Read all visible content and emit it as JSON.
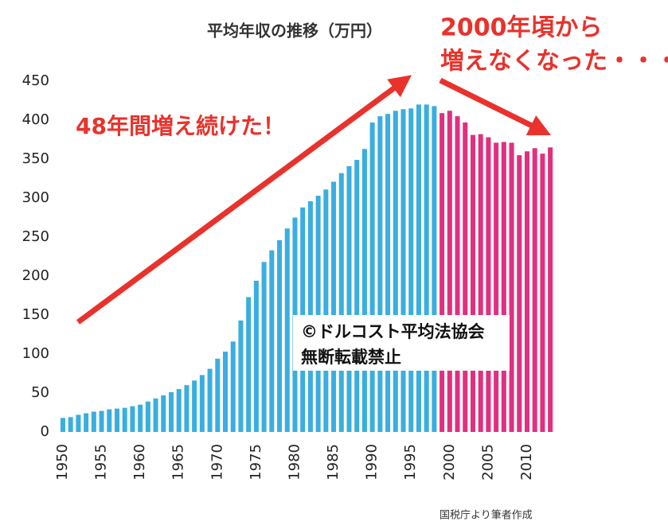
{
  "chart_data": {
    "type": "bar",
    "title": "平均年収の推移（万円）",
    "annotations": [
      "48年間増え続けた！",
      "2000年頃から",
      "増えなくなった・・・",
      "©ドルコスト平均法協会",
      "無断転載禁止"
    ],
    "source": "国税庁より筆者作成",
    "series": [
      {
        "color": "#3aaee0",
        "x": [
          1950,
          1951,
          1952,
          1953,
          1954,
          1955,
          1956,
          1957,
          1958,
          1959,
          1960,
          1961,
          1962,
          1963,
          1964,
          1965,
          1966,
          1967,
          1968,
          1969,
          1970,
          1971,
          1972,
          1973,
          1974,
          1975,
          1976,
          1977,
          1978,
          1979,
          1980,
          1981,
          1982,
          1983,
          1984,
          1985,
          1986,
          1987,
          1988,
          1989,
          1990,
          1991,
          1992,
          1993,
          1994,
          1995,
          1996,
          1997,
          1998
        ],
        "values": [
          18,
          19,
          22,
          24,
          26,
          27,
          29,
          30,
          31,
          33,
          35,
          39,
          43,
          47,
          51,
          55,
          60,
          66,
          73,
          81,
          94,
          103,
          116,
          143,
          173,
          194,
          218,
          233,
          246,
          261,
          275,
          288,
          296,
          303,
          311,
          321,
          332,
          341,
          349,
          363,
          397,
          405,
          408,
          412,
          414,
          415,
          420,
          420,
          418
        ]
      },
      {
        "color": "#e0307f",
        "x": [
          1999,
          2000,
          2001,
          2002,
          2003,
          2004,
          2005,
          2006,
          2007,
          2008,
          2009,
          2010,
          2011,
          2012,
          2013
        ],
        "values": [
          409,
          412,
          405,
          397,
          381,
          382,
          378,
          371,
          372,
          371,
          355,
          360,
          364,
          357,
          365
        ]
      }
    ],
    "xlim": [
      1949.5,
      2013.5
    ],
    "xticks": [
      1950,
      1955,
      1960,
      1965,
      1970,
      1975,
      1980,
      1985,
      1990,
      1995,
      2000,
      2005,
      2010
    ],
    "ylim": [
      0,
      450
    ],
    "yticks": [
      0,
      50,
      100,
      150,
      200,
      250,
      300,
      350,
      400,
      450
    ],
    "grid": false
  }
}
